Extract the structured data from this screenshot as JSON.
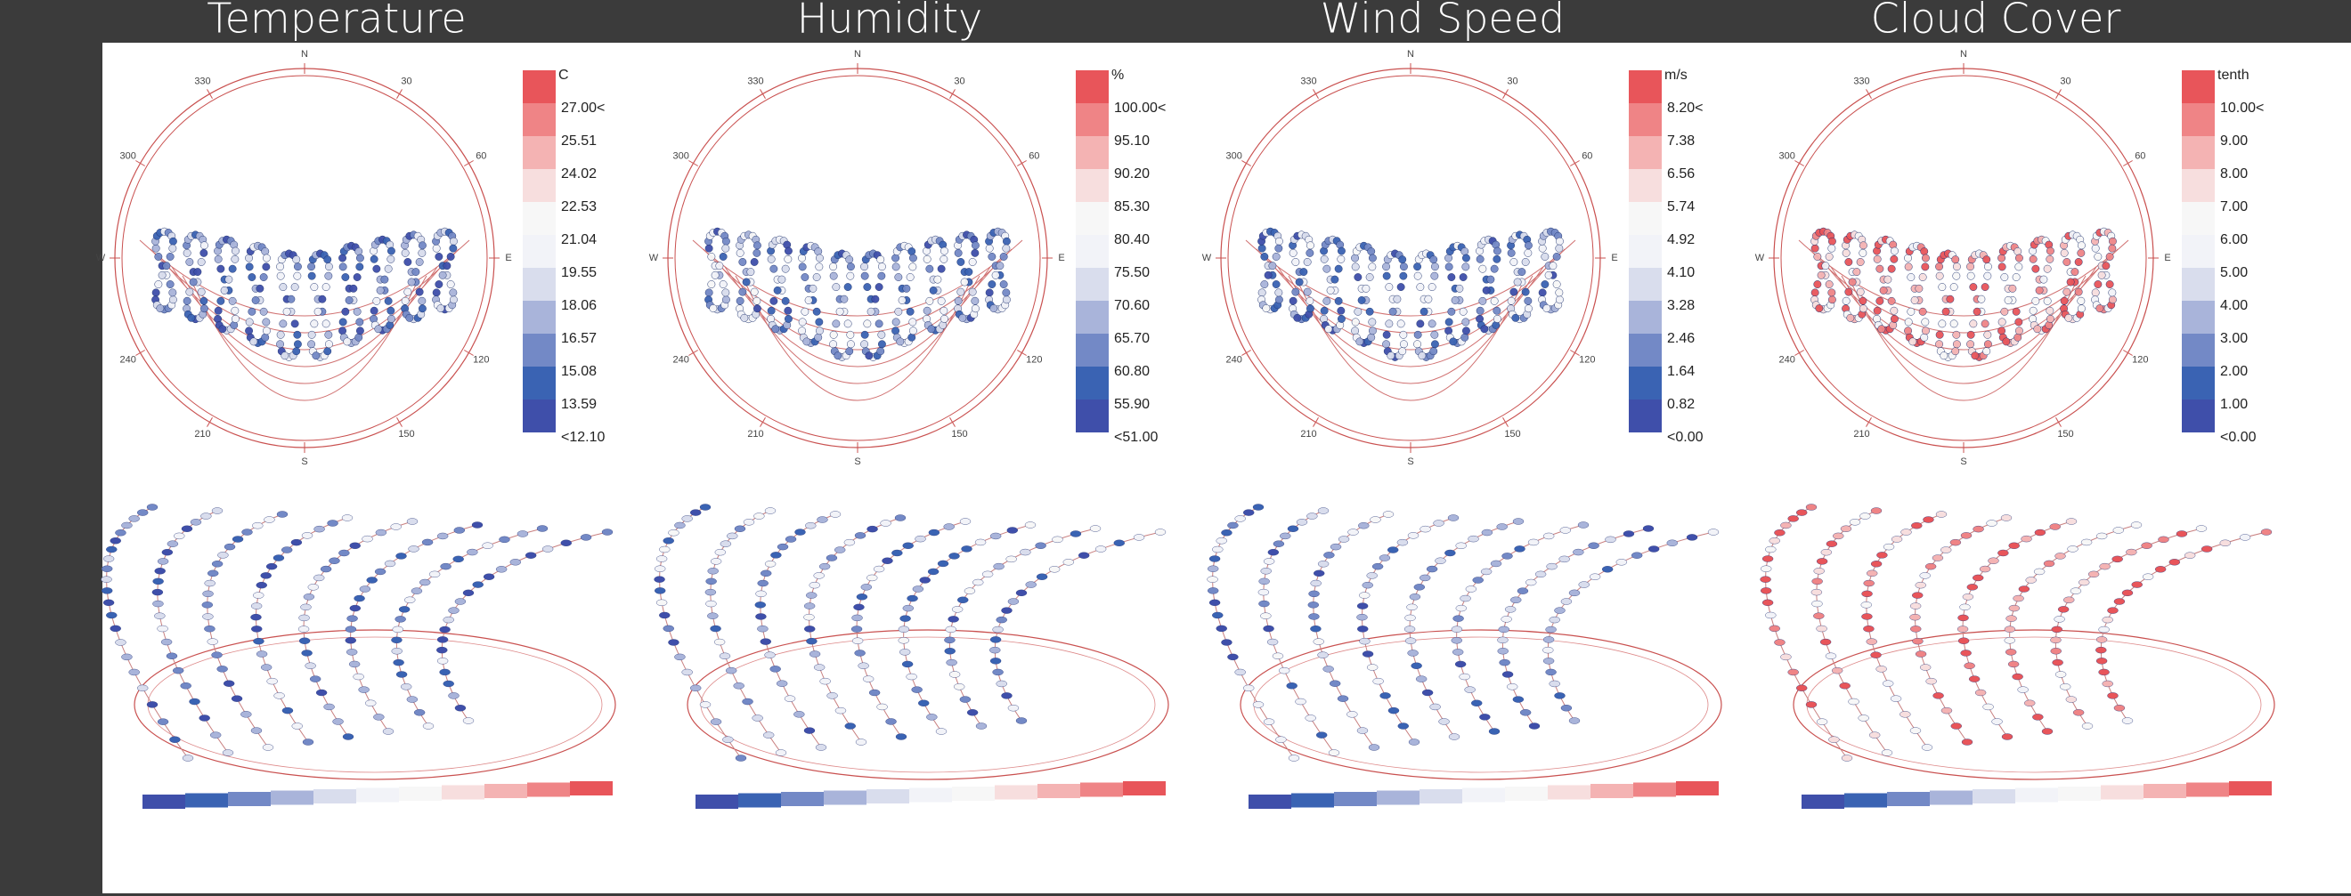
{
  "compass": [
    "N",
    "30",
    "60",
    "E",
    "120",
    "150",
    "S",
    "210",
    "240",
    "W",
    "300",
    "330"
  ],
  "legend_colors": [
    "#e8555a",
    "#ef8486",
    "#f4b3b3",
    "#f7dede",
    "#f7f7f7",
    "#f2f3f8",
    "#d9dded",
    "#a9b4da",
    "#7389c6",
    "#3a63b3",
    "#3f4faa"
  ],
  "panels": [
    {
      "title": "Temperature",
      "unit": "C",
      "labels": [
        "27.00<",
        "25.51",
        "24.02",
        "22.53",
        "21.04",
        "19.55",
        "18.06",
        "16.57",
        "15.08",
        "13.59",
        "<12.10"
      ]
    },
    {
      "title": "Humidity",
      "unit": "%",
      "labels": [
        "100.00<",
        "95.10",
        "90.20",
        "85.30",
        "80.40",
        "75.50",
        "70.60",
        "65.70",
        "60.80",
        "55.90",
        "<51.00"
      ]
    },
    {
      "title": "Wind Speed",
      "unit": "m/s",
      "labels": [
        "8.20<",
        "7.38",
        "6.56",
        "5.74",
        "4.92",
        "4.10",
        "3.28",
        "2.46",
        "1.64",
        "0.82",
        "<0.00"
      ]
    },
    {
      "title": "Cloud Cover",
      "unit": "tenth",
      "labels": [
        "10.00<",
        "9.00",
        "8.00",
        "7.00",
        "6.00",
        "5.00",
        "4.00",
        "3.00",
        "2.00",
        "1.00",
        "<0.00"
      ]
    }
  ]
}
